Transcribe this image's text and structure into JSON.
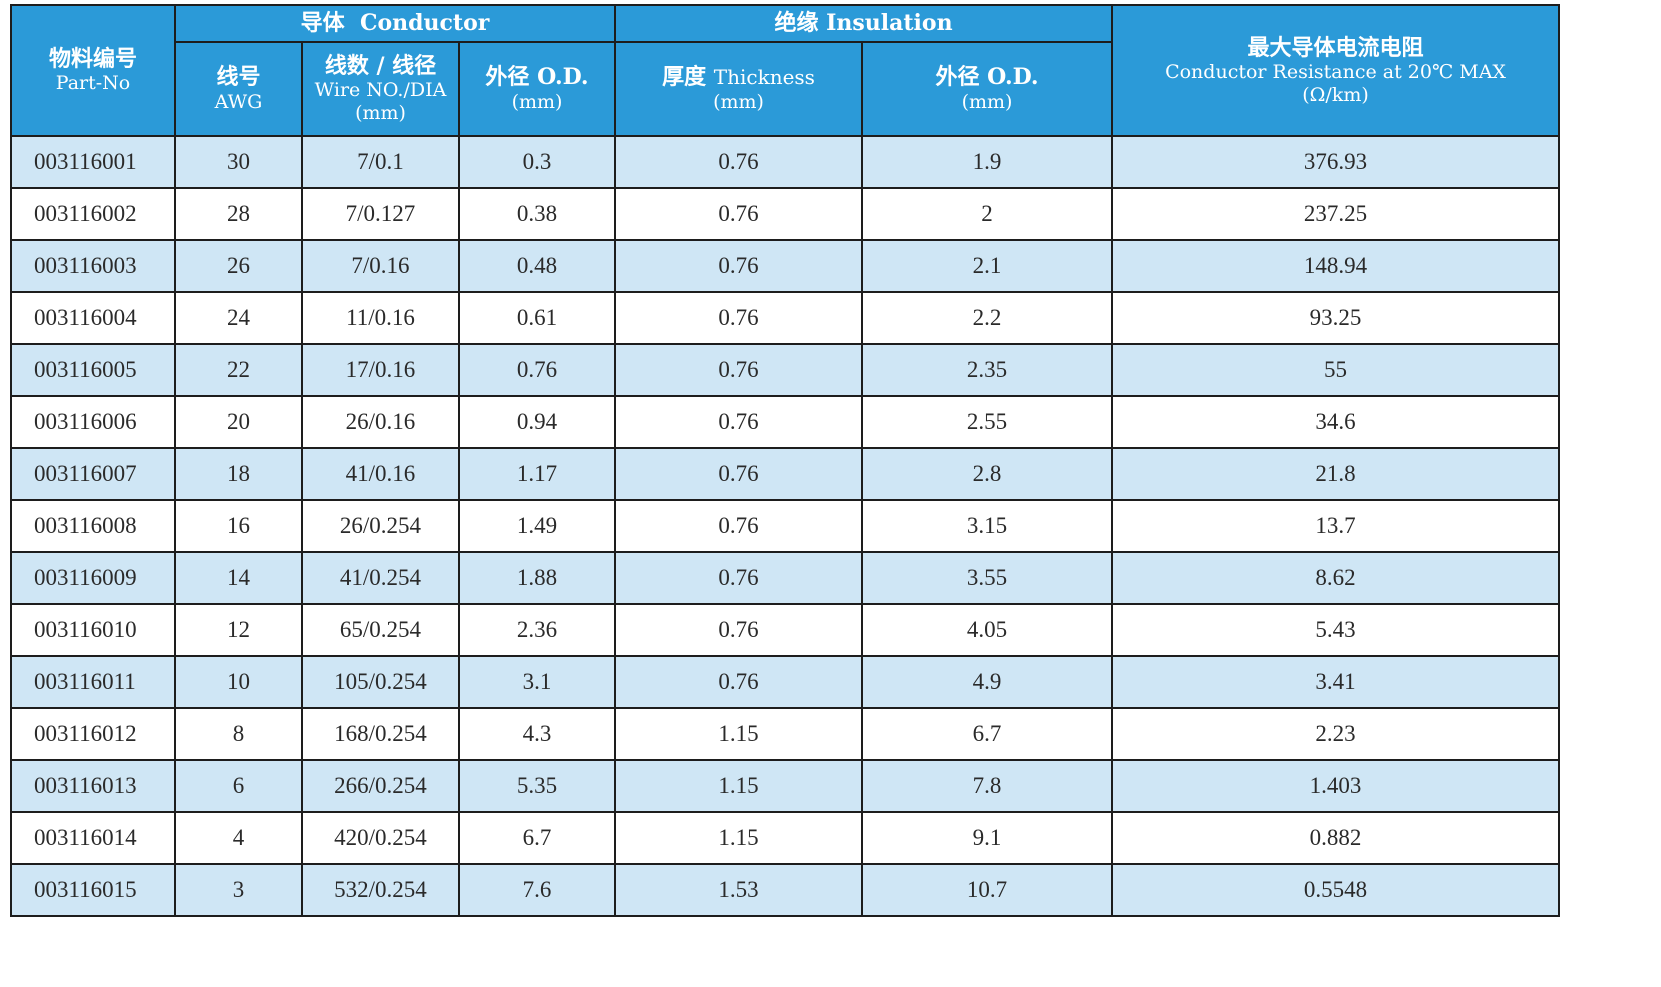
{
  "header": {
    "part_no_cn": "物料编号",
    "part_no_en": "Part-No",
    "conductor_group": "导体  Conductor",
    "insulation_group": "绝缘 Insulation",
    "resistance_cn": "最大导体电流电阻",
    "resistance_en": "Conductor Resistance at 20℃ MAX",
    "resistance_unit": "(Ω/km)",
    "awg_cn": "线号",
    "awg_en": "AWG",
    "wire_cn": "线数 / 线径",
    "wire_en": "Wire NO./DIA",
    "wire_unit": "(mm)",
    "cond_od_cn": "外径 O.D.",
    "cond_od_unit": "(mm)",
    "thick_cn": "厚度",
    "thick_en": "Thickness",
    "thick_unit": "(mm)",
    "ins_od_cn": "外径 O.D.",
    "ins_od_unit": "(mm)"
  },
  "rows": [
    {
      "part": "003116001",
      "awg": "30",
      "wire": "7/0.1",
      "cod": "0.3",
      "thick": "0.76",
      "iod": "1.9",
      "res": "376.93"
    },
    {
      "part": "003116002",
      "awg": "28",
      "wire": "7/0.127",
      "cod": "0.38",
      "thick": "0.76",
      "iod": "2",
      "res": "237.25"
    },
    {
      "part": "003116003",
      "awg": "26",
      "wire": "7/0.16",
      "cod": "0.48",
      "thick": "0.76",
      "iod": "2.1",
      "res": "148.94"
    },
    {
      "part": "003116004",
      "awg": "24",
      "wire": "11/0.16",
      "cod": "0.61",
      "thick": "0.76",
      "iod": "2.2",
      "res": "93.25"
    },
    {
      "part": "003116005",
      "awg": "22",
      "wire": "17/0.16",
      "cod": "0.76",
      "thick": "0.76",
      "iod": "2.35",
      "res": "55"
    },
    {
      "part": "003116006",
      "awg": "20",
      "wire": "26/0.16",
      "cod": "0.94",
      "thick": "0.76",
      "iod": "2.55",
      "res": "34.6"
    },
    {
      "part": "003116007",
      "awg": "18",
      "wire": "41/0.16",
      "cod": "1.17",
      "thick": "0.76",
      "iod": "2.8",
      "res": "21.8"
    },
    {
      "part": "003116008",
      "awg": "16",
      "wire": "26/0.254",
      "cod": "1.49",
      "thick": "0.76",
      "iod": "3.15",
      "res": "13.7"
    },
    {
      "part": "003116009",
      "awg": "14",
      "wire": "41/0.254",
      "cod": "1.88",
      "thick": "0.76",
      "iod": "3.55",
      "res": "8.62"
    },
    {
      "part": "003116010",
      "awg": "12",
      "wire": "65/0.254",
      "cod": "2.36",
      "thick": "0.76",
      "iod": "4.05",
      "res": "5.43"
    },
    {
      "part": "003116011",
      "awg": "10",
      "wire": "105/0.254",
      "cod": "3.1",
      "thick": "0.76",
      "iod": "4.9",
      "res": "3.41"
    },
    {
      "part": "003116012",
      "awg": "8",
      "wire": "168/0.254",
      "cod": "4.3",
      "thick": "1.15",
      "iod": "6.7",
      "res": "2.23"
    },
    {
      "part": "003116013",
      "awg": "6",
      "wire": "266/0.254",
      "cod": "5.35",
      "thick": "1.15",
      "iod": "7.8",
      "res": "1.403"
    },
    {
      "part": "003116014",
      "awg": "4",
      "wire": "420/0.254",
      "cod": "6.7",
      "thick": "1.15",
      "iod": "9.1",
      "res": "0.882"
    },
    {
      "part": "003116015",
      "awg": "3",
      "wire": "532/0.254",
      "cod": "7.6",
      "thick": "1.53",
      "iod": "10.7",
      "res": "0.5548"
    }
  ],
  "colors": {
    "header_bg": "#2b9ad8",
    "row_alt_bg": "#cfe6f5",
    "border": "#1d1d1d"
  }
}
